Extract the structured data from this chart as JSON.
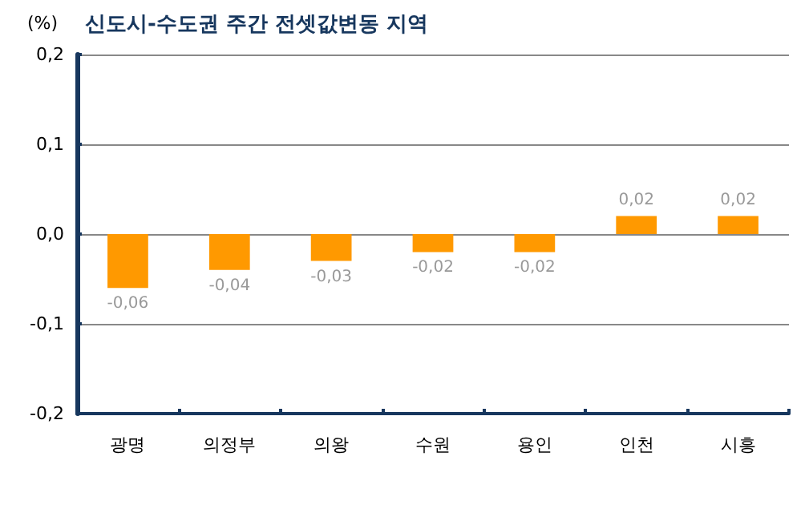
{
  "chart_data": {
    "type": "bar",
    "title": "신도시-수도권 주간 전셋값변동 지역",
    "ylabel": "(%)",
    "categories": [
      "광명",
      "의정부",
      "의왕",
      "수원",
      "용인",
      "인천",
      "시흥"
    ],
    "values": [
      -0.06,
      -0.04,
      -0.03,
      -0.02,
      -0.02,
      0.02,
      0.02
    ],
    "value_labels": [
      "-0,06",
      "-0,04",
      "-0,03",
      "-0,02",
      "-0,02",
      "0,02",
      "0,02"
    ],
    "color": "#ff9900",
    "ylim": [
      -0.2,
      0.2
    ],
    "yticks": [
      {
        "value": -0.2,
        "label": "-0,2"
      },
      {
        "value": -0.1,
        "label": "-0,1"
      },
      {
        "value": 0,
        "label": "0,0"
      },
      {
        "value": 0.1,
        "label": "0,1"
      },
      {
        "value": 0.2,
        "label": "0,2"
      }
    ],
    "grid": "y"
  }
}
